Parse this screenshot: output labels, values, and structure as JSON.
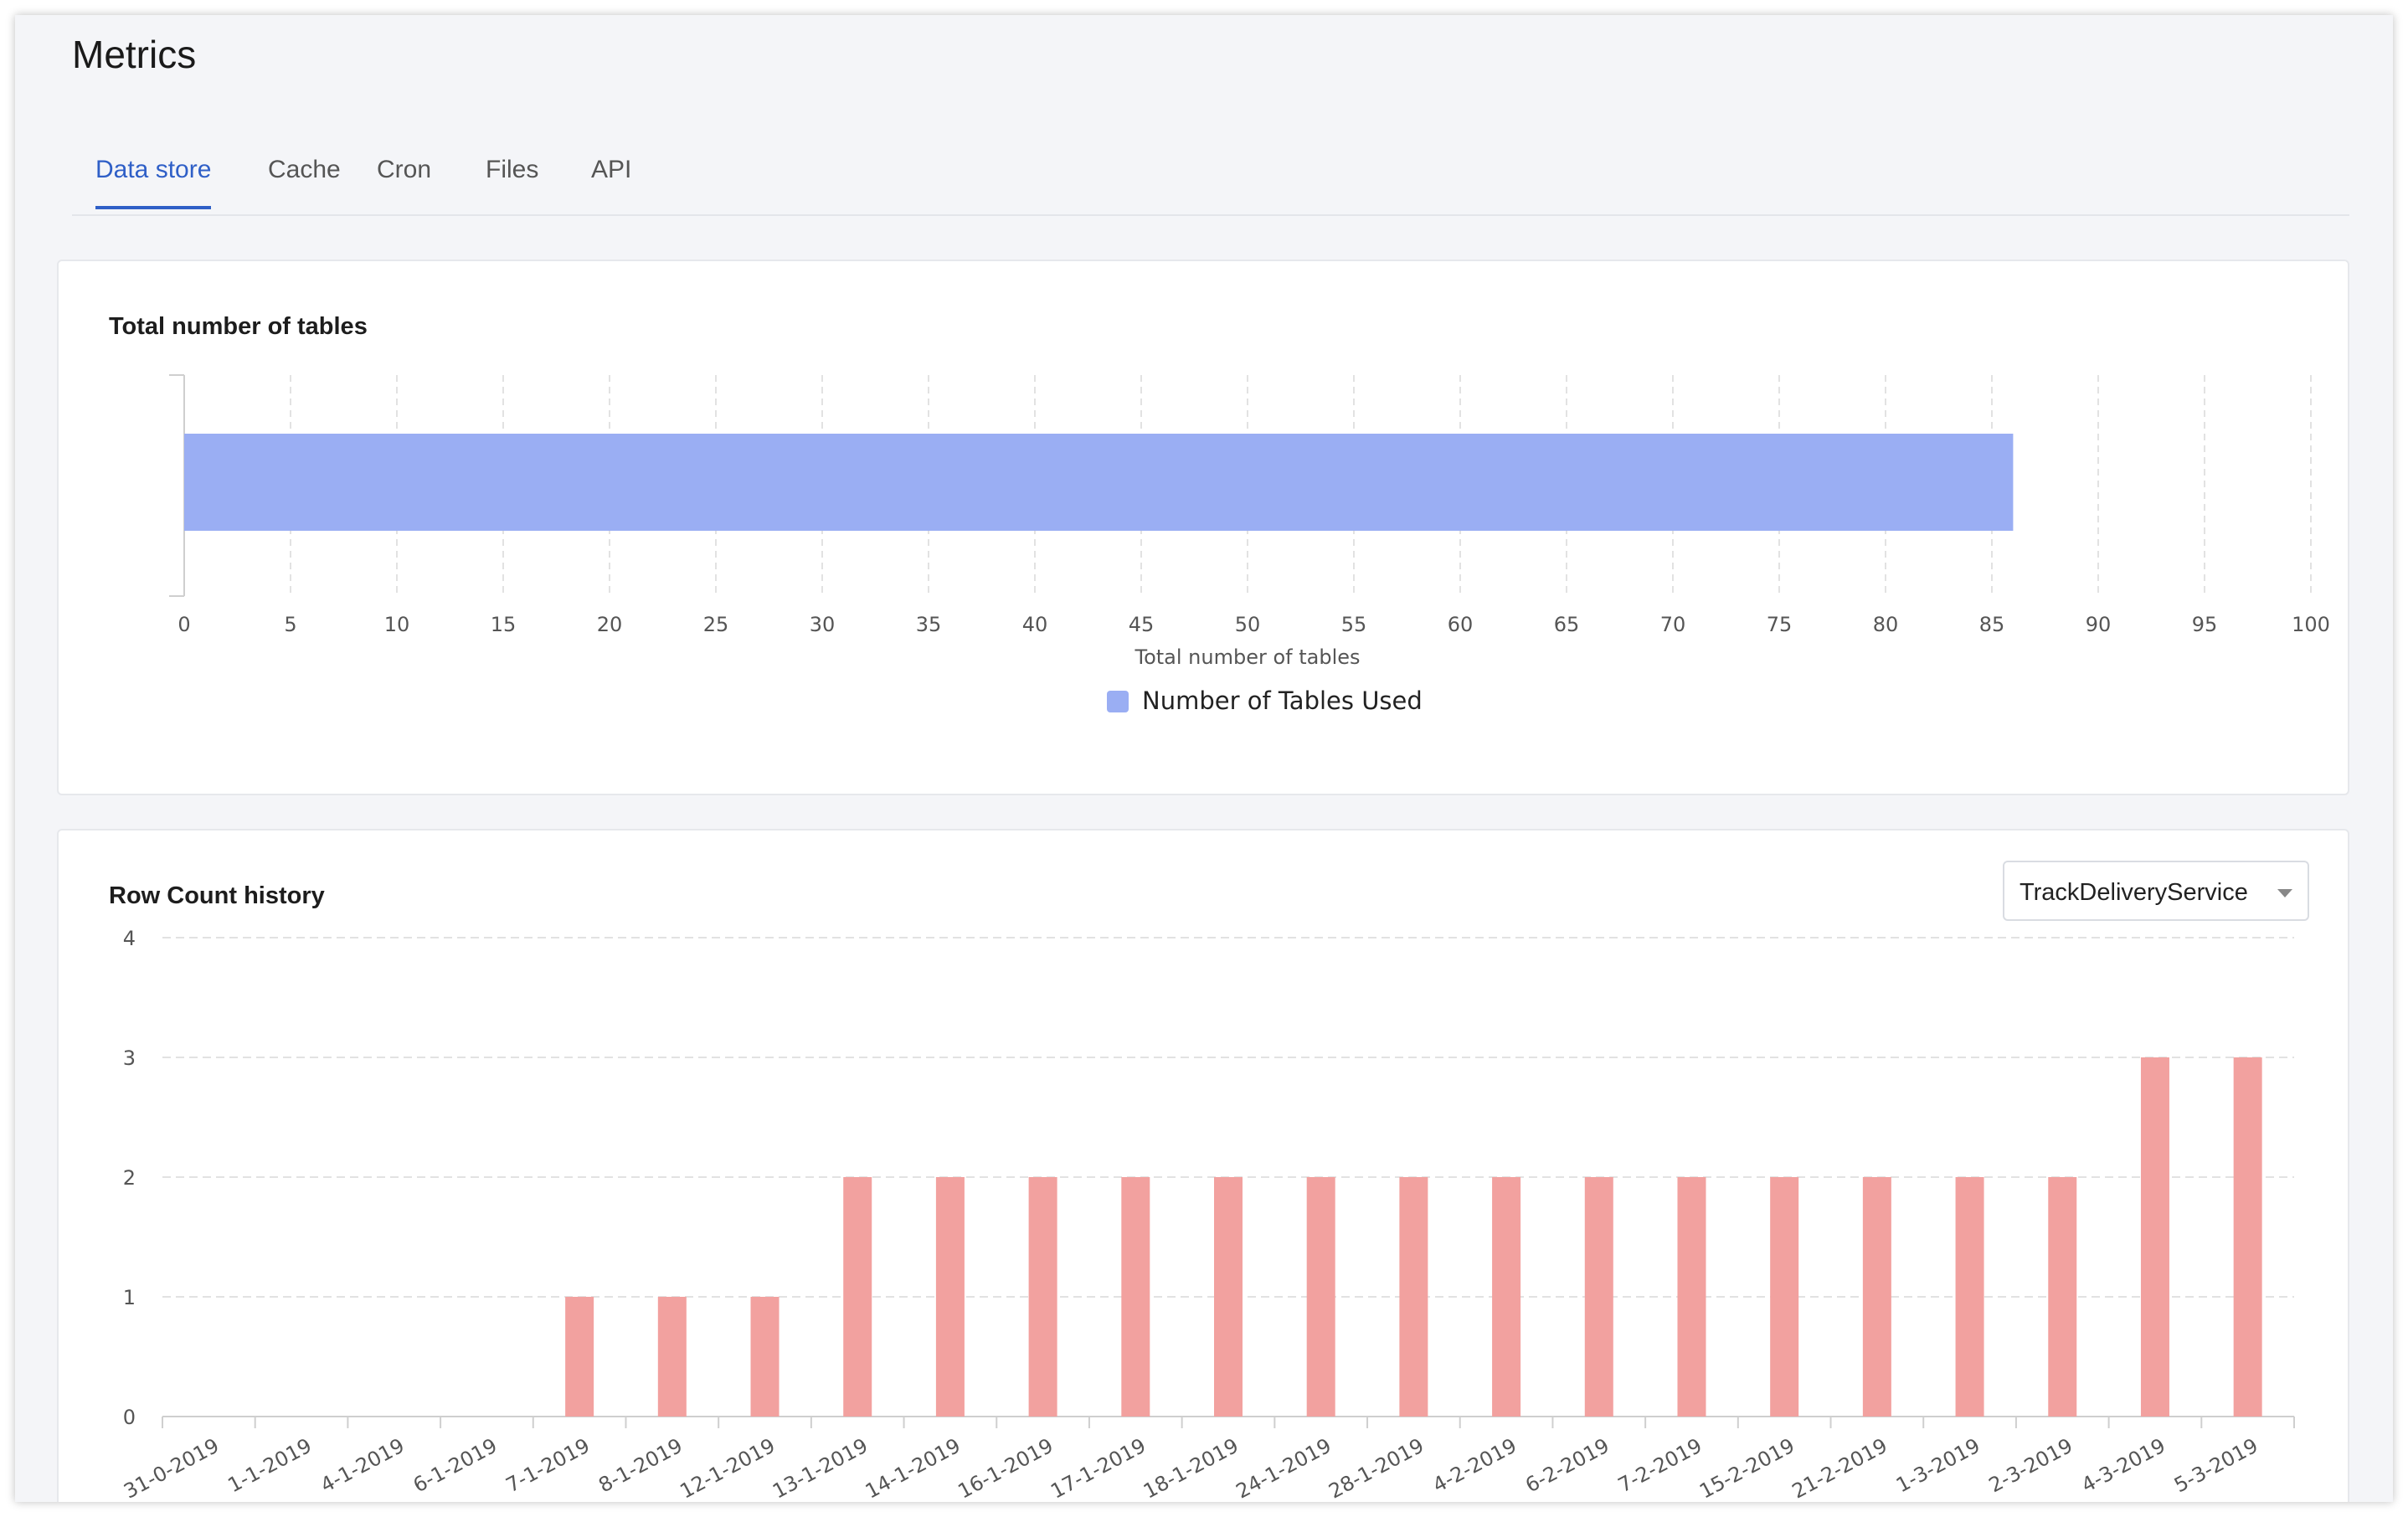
{
  "page": {
    "title": "Metrics"
  },
  "tabs": [
    {
      "label": "Data store",
      "active": true
    },
    {
      "label": "Cache",
      "active": false
    },
    {
      "label": "Cron",
      "active": false
    },
    {
      "label": "Files",
      "active": false
    },
    {
      "label": "API",
      "active": false
    }
  ],
  "colors": {
    "accent": "#2f5fc7",
    "tables_bar": "#9aaef3",
    "row_bar": "#f2a19f"
  },
  "tables_card": {
    "title": "Total number of tables"
  },
  "rows_card": {
    "title": "Row Count history",
    "service_select": {
      "value": "TrackDeliveryService"
    }
  },
  "chart_data": [
    {
      "type": "bar",
      "orientation": "horizontal",
      "title": "Total number of tables",
      "xlabel": "Total number of tables",
      "ylabel": "",
      "xlim": [
        0,
        100
      ],
      "x_ticks": [
        0,
        5,
        10,
        15,
        20,
        25,
        30,
        35,
        40,
        45,
        50,
        55,
        60,
        65,
        70,
        75,
        80,
        85,
        90,
        95,
        100
      ],
      "series": [
        {
          "name": "Number of Tables Used",
          "values": [
            86
          ]
        }
      ],
      "legend": "bottom-center",
      "grid": true
    },
    {
      "type": "bar",
      "title": "Row Count history",
      "xlabel": "",
      "ylabel": "",
      "ylim": [
        0,
        4
      ],
      "y_ticks": [
        0,
        1,
        2,
        3,
        4
      ],
      "categories": [
        "31-0-2019",
        "1-1-2019",
        "4-1-2019",
        "6-1-2019",
        "7-1-2019",
        "8-1-2019",
        "12-1-2019",
        "13-1-2019",
        "14-1-2019",
        "16-1-2019",
        "17-1-2019",
        "18-1-2019",
        "24-1-2019",
        "28-1-2019",
        "4-2-2019",
        "6-2-2019",
        "7-2-2019",
        "15-2-2019",
        "21-2-2019",
        "1-3-2019",
        "2-3-2019",
        "4-3-2019",
        "5-3-2019"
      ],
      "values": [
        0,
        0,
        0,
        0,
        1,
        1,
        1,
        2,
        2,
        2,
        2,
        2,
        2,
        2,
        2,
        2,
        2,
        2,
        2,
        2,
        2,
        3,
        3
      ],
      "grid": true
    }
  ]
}
